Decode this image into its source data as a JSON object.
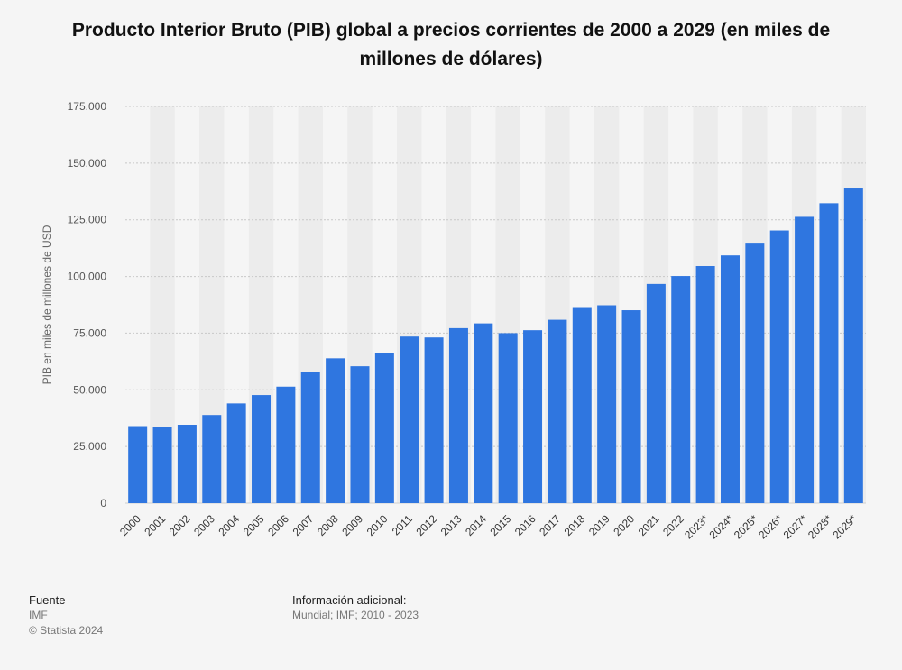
{
  "chart_data": {
    "type": "bar",
    "title": "Producto Interior Bruto (PIB) global a precios corrientes de 2000 a 2029 (en miles de millones de dólares)",
    "xlabel": "",
    "ylabel": "PIB en miles de millones de USD",
    "ylim": [
      0,
      175000
    ],
    "yticks": [
      0,
      25000,
      50000,
      75000,
      100000,
      125000,
      150000,
      175000
    ],
    "ytick_labels": [
      "0",
      "25.000",
      "50.000",
      "75.000",
      "100.000",
      "125.000",
      "150.000",
      "175.000"
    ],
    "grid": true,
    "bar_color": "#2f76e0",
    "categories": [
      "2000",
      "2001",
      "2002",
      "2003",
      "2004",
      "2005",
      "2006",
      "2007",
      "2008",
      "2009",
      "2010",
      "2011",
      "2012",
      "2013",
      "2014",
      "2015",
      "2016",
      "2017",
      "2018",
      "2019",
      "2020",
      "2021",
      "2022",
      "2023*",
      "2024*",
      "2025*",
      "2026*",
      "2027*",
      "2028*",
      "2029*"
    ],
    "values": [
      34000,
      33500,
      34600,
      38900,
      44000,
      47700,
      51400,
      58000,
      63900,
      60400,
      66200,
      73500,
      73100,
      77200,
      79300,
      75000,
      76300,
      80900,
      86100,
      87300,
      85100,
      96700,
      100200,
      104600,
      109300,
      114500,
      120300,
      126300,
      132300,
      138800
    ]
  },
  "footer": {
    "source_heading": "Fuente",
    "source_value": "IMF",
    "copyright": "© Statista 2024",
    "info_heading": "Información adicional:",
    "info_value": "Mundial; IMF; 2010 - 2023"
  }
}
